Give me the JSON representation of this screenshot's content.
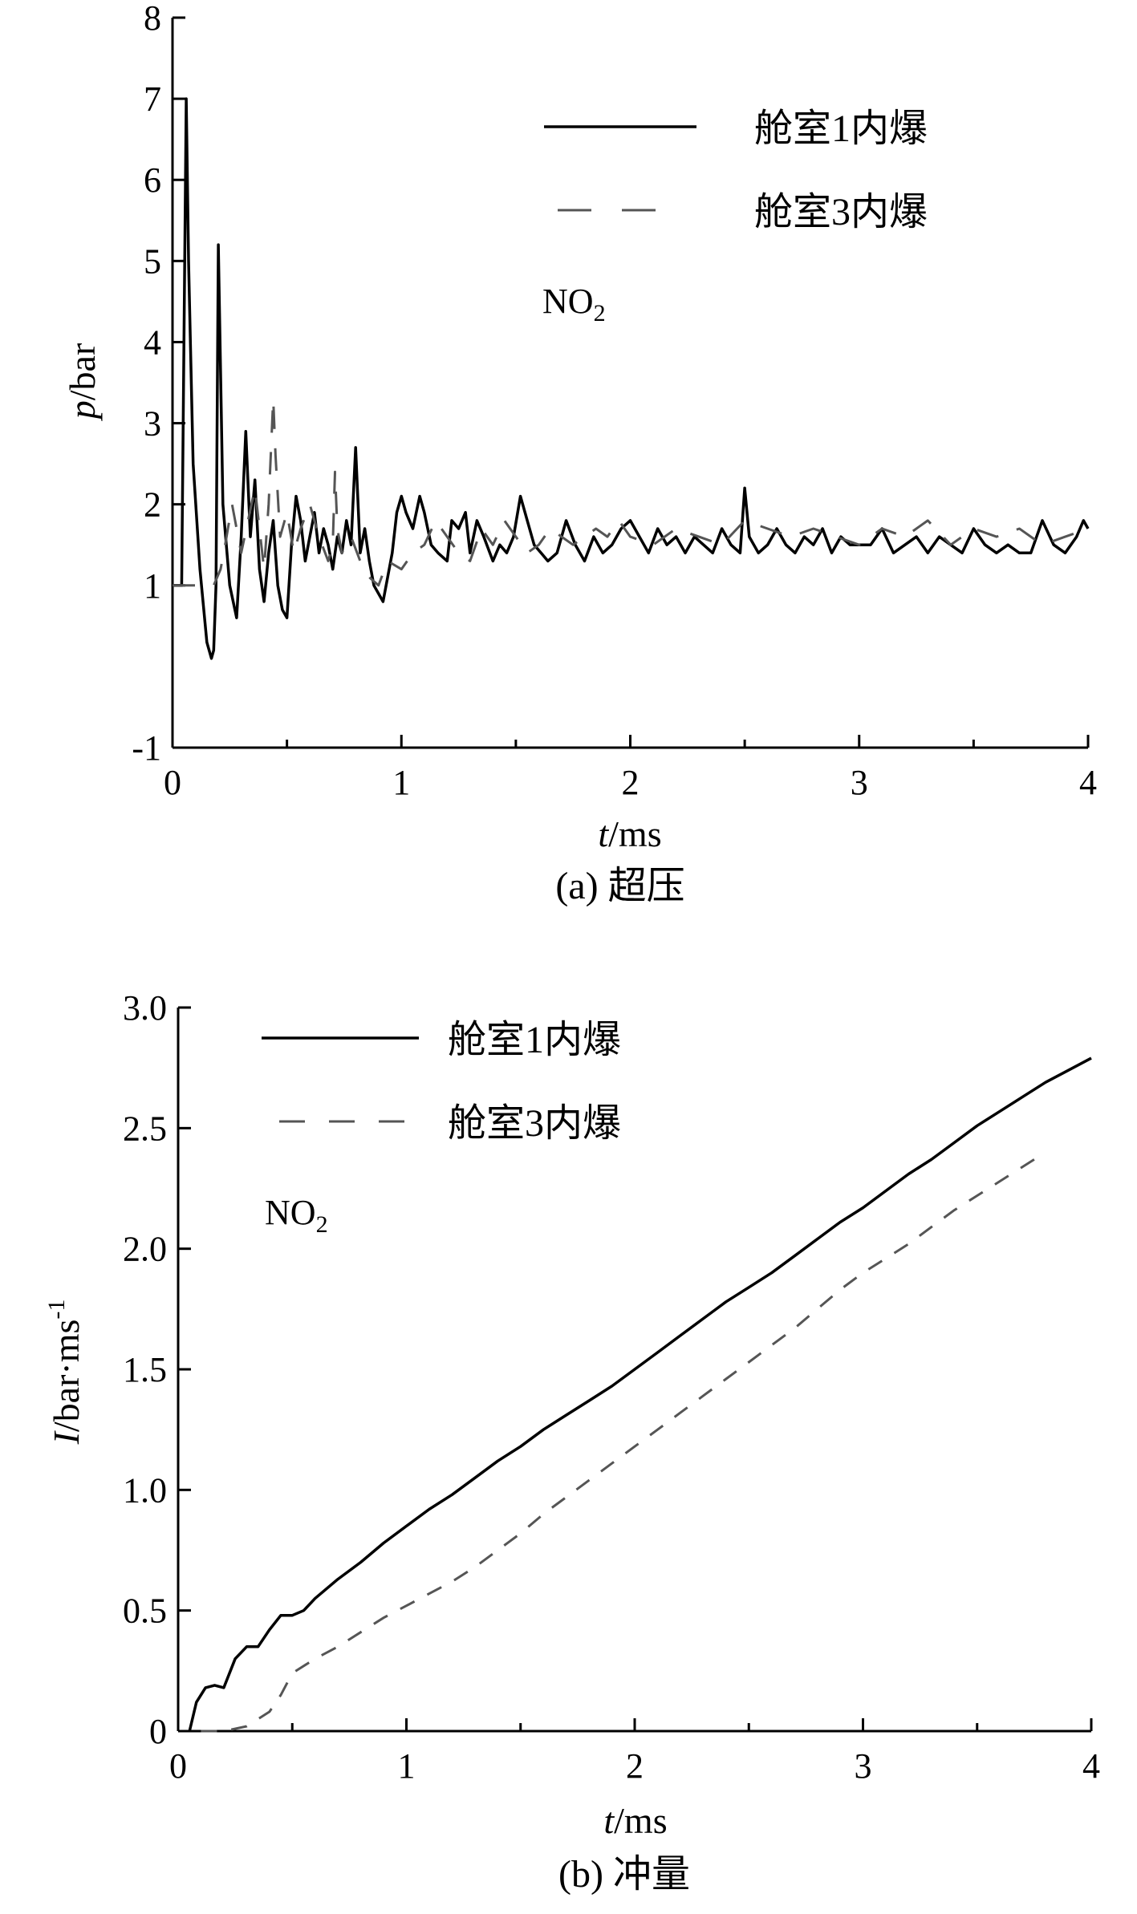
{
  "chart_data": [
    {
      "type": "line",
      "id": "a",
      "caption": "(a) 超压",
      "xlabel": {
        "symbol": "t",
        "unit": "/ms"
      },
      "ylabel": {
        "symbol": "p",
        "unit": "/bar"
      },
      "xlim": [
        0,
        4
      ],
      "ylim": [
        -1,
        8
      ],
      "x_ticks": [
        "0",
        "1",
        "2",
        "3",
        "4"
      ],
      "y_ticks": [
        {
          "value": -1,
          "label": "-1"
        },
        {
          "value": 1,
          "label": "1"
        },
        {
          "value": 2,
          "label": "2"
        },
        {
          "value": 3,
          "label": "3"
        },
        {
          "value": 4,
          "label": "4"
        },
        {
          "value": 5,
          "label": "5"
        },
        {
          "value": 6,
          "label": "6"
        },
        {
          "value": 7,
          "label": "7"
        },
        {
          "value": 8,
          "label": "8"
        }
      ],
      "annotation": {
        "base": "NO",
        "sub": "2"
      },
      "legend_position": "top-right",
      "series": [
        {
          "name": "舱室1内爆",
          "style": "solid",
          "x": [
            0.0,
            0.04,
            0.06,
            0.07,
            0.09,
            0.12,
            0.15,
            0.17,
            0.18,
            0.19,
            0.2,
            0.22,
            0.25,
            0.28,
            0.3,
            0.32,
            0.34,
            0.36,
            0.38,
            0.4,
            0.42,
            0.44,
            0.46,
            0.48,
            0.5,
            0.52,
            0.54,
            0.56,
            0.58,
            0.6,
            0.62,
            0.64,
            0.66,
            0.68,
            0.7,
            0.72,
            0.74,
            0.76,
            0.78,
            0.8,
            0.82,
            0.84,
            0.86,
            0.88,
            0.9,
            0.92,
            0.94,
            0.96,
            0.98,
            1.0,
            1.02,
            1.05,
            1.08,
            1.1,
            1.13,
            1.16,
            1.2,
            1.22,
            1.25,
            1.28,
            1.3,
            1.33,
            1.36,
            1.4,
            1.43,
            1.46,
            1.49,
            1.52,
            1.55,
            1.58,
            1.61,
            1.64,
            1.68,
            1.72,
            1.76,
            1.8,
            1.84,
            1.88,
            1.92,
            1.96,
            2.0,
            2.04,
            2.08,
            2.12,
            2.16,
            2.2,
            2.24,
            2.28,
            2.32,
            2.36,
            2.4,
            2.44,
            2.48,
            2.5,
            2.52,
            2.56,
            2.6,
            2.64,
            2.68,
            2.72,
            2.76,
            2.8,
            2.84,
            2.88,
            2.92,
            2.96,
            3.0,
            3.05,
            3.1,
            3.15,
            3.2,
            3.25,
            3.3,
            3.35,
            3.4,
            3.45,
            3.5,
            3.55,
            3.6,
            3.65,
            3.7,
            3.75,
            3.8,
            3.85,
            3.9,
            3.95,
            3.98,
            4.0
          ],
          "y": [
            1.0,
            1.0,
            7.0,
            5.0,
            2.5,
            1.2,
            0.3,
            0.1,
            0.2,
            1.0,
            5.2,
            2.0,
            1.0,
            0.6,
            1.6,
            2.9,
            1.6,
            2.3,
            1.2,
            0.8,
            1.4,
            1.8,
            1.0,
            0.7,
            0.6,
            1.5,
            2.1,
            1.8,
            1.3,
            1.6,
            1.9,
            1.4,
            1.7,
            1.5,
            1.2,
            1.6,
            1.4,
            1.8,
            1.5,
            2.7,
            1.4,
            1.7,
            1.3,
            1.0,
            0.9,
            0.8,
            1.1,
            1.4,
            1.9,
            2.1,
            1.9,
            1.7,
            2.1,
            1.9,
            1.5,
            1.4,
            1.3,
            1.8,
            1.7,
            1.9,
            1.4,
            1.8,
            1.6,
            1.3,
            1.5,
            1.4,
            1.6,
            2.1,
            1.8,
            1.5,
            1.4,
            1.3,
            1.4,
            1.8,
            1.5,
            1.3,
            1.6,
            1.4,
            1.5,
            1.7,
            1.8,
            1.6,
            1.4,
            1.7,
            1.5,
            1.6,
            1.4,
            1.6,
            1.5,
            1.4,
            1.7,
            1.5,
            1.4,
            2.2,
            1.6,
            1.4,
            1.5,
            1.7,
            1.5,
            1.4,
            1.6,
            1.5,
            1.7,
            1.4,
            1.6,
            1.5,
            1.5,
            1.5,
            1.7,
            1.4,
            1.5,
            1.6,
            1.4,
            1.6,
            1.5,
            1.4,
            1.7,
            1.5,
            1.4,
            1.5,
            1.4,
            1.4,
            1.8,
            1.5,
            1.4,
            1.6,
            1.8,
            1.7
          ]
        },
        {
          "name": "舱室3内爆",
          "style": "dashed",
          "x": [
            0.0,
            0.1,
            0.18,
            0.21,
            0.23,
            0.26,
            0.3,
            0.33,
            0.36,
            0.4,
            0.42,
            0.44,
            0.45,
            0.47,
            0.5,
            0.53,
            0.56,
            0.6,
            0.64,
            0.68,
            0.7,
            0.71,
            0.72,
            0.74,
            0.78,
            0.82,
            0.86,
            0.9,
            0.94,
            1.0,
            1.05,
            1.1,
            1.15,
            1.2,
            1.25,
            1.3,
            1.35,
            1.4,
            1.45,
            1.5,
            1.55,
            1.6,
            1.65,
            1.7,
            1.75,
            1.8,
            1.85,
            1.9,
            1.95,
            2.0,
            2.1,
            2.2,
            2.3,
            2.4,
            2.5,
            2.6,
            2.7,
            2.8,
            2.9,
            3.0,
            3.1,
            3.2,
            3.3,
            3.4,
            3.5,
            3.6,
            3.7,
            3.8,
            3.9,
            4.0
          ],
          "y": [
            1.0,
            1.0,
            1.0,
            1.2,
            1.5,
            2.0,
            1.4,
            1.8,
            2.2,
            1.2,
            2.0,
            3.3,
            2.6,
            1.6,
            1.9,
            1.4,
            1.7,
            2.0,
            1.6,
            1.3,
            1.5,
            2.4,
            1.7,
            1.4,
            1.6,
            1.3,
            1.1,
            1.0,
            1.3,
            1.2,
            1.4,
            1.5,
            1.8,
            1.6,
            1.4,
            1.3,
            1.7,
            1.5,
            1.8,
            1.6,
            1.4,
            1.5,
            1.7,
            1.6,
            1.5,
            1.6,
            1.7,
            1.6,
            1.8,
            1.6,
            1.5,
            1.7,
            1.6,
            1.5,
            1.8,
            1.7,
            1.6,
            1.7,
            1.6,
            1.5,
            1.7,
            1.6,
            1.8,
            1.5,
            1.7,
            1.6,
            1.7,
            1.5,
            1.6,
            1.7
          ]
        }
      ]
    },
    {
      "type": "line",
      "id": "b",
      "caption": "(b) 冲量",
      "xlabel": {
        "symbol": "t",
        "unit": "/ms"
      },
      "ylabel": {
        "symbol": "I",
        "unit": "/bar·ms",
        "sup": "-1"
      },
      "xlim": [
        0,
        4
      ],
      "ylim": [
        0,
        3.0
      ],
      "x_ticks": [
        "0",
        "1",
        "2",
        "3",
        "4"
      ],
      "y_ticks": [
        {
          "value": 0,
          "label": "0"
        },
        {
          "value": 0.5,
          "label": "0.5"
        },
        {
          "value": 1.0,
          "label": "1.0"
        },
        {
          "value": 1.5,
          "label": "1.5"
        },
        {
          "value": 2.0,
          "label": "2.0"
        },
        {
          "value": 2.5,
          "label": "2.5"
        },
        {
          "value": 3.0,
          "label": "3.0"
        }
      ],
      "annotation": {
        "base": "NO",
        "sub": "2"
      },
      "legend_position": "top-left",
      "series": [
        {
          "name": "舱室1内爆",
          "style": "solid",
          "x": [
            0.05,
            0.08,
            0.12,
            0.16,
            0.2,
            0.25,
            0.3,
            0.35,
            0.4,
            0.45,
            0.5,
            0.55,
            0.6,
            0.7,
            0.8,
            0.9,
            1.0,
            1.1,
            1.2,
            1.3,
            1.4,
            1.5,
            1.6,
            1.7,
            1.8,
            1.9,
            2.0,
            2.1,
            2.2,
            2.3,
            2.4,
            2.5,
            2.6,
            2.7,
            2.8,
            2.9,
            3.0,
            3.1,
            3.2,
            3.3,
            3.4,
            3.5,
            3.6,
            3.7,
            3.8,
            3.9,
            4.0
          ],
          "y": [
            0.0,
            0.12,
            0.18,
            0.19,
            0.18,
            0.3,
            0.35,
            0.35,
            0.42,
            0.48,
            0.48,
            0.5,
            0.55,
            0.63,
            0.7,
            0.78,
            0.85,
            0.92,
            0.98,
            1.05,
            1.12,
            1.18,
            1.25,
            1.31,
            1.37,
            1.43,
            1.5,
            1.57,
            1.64,
            1.71,
            1.78,
            1.84,
            1.9,
            1.97,
            2.04,
            2.11,
            2.17,
            2.24,
            2.31,
            2.37,
            2.44,
            2.51,
            2.57,
            2.63,
            2.69,
            2.74,
            2.79
          ]
        },
        {
          "name": "舱室3内爆",
          "style": "dashed",
          "x": [
            0.1,
            0.2,
            0.3,
            0.4,
            0.45,
            0.5,
            0.6,
            0.7,
            0.8,
            0.9,
            1.0,
            1.1,
            1.2,
            1.3,
            1.4,
            1.5,
            1.6,
            1.7,
            1.8,
            1.9,
            2.0,
            2.1,
            2.2,
            2.3,
            2.4,
            2.5,
            2.6,
            2.7,
            2.8,
            2.9,
            3.0,
            3.1,
            3.2,
            3.3,
            3.4,
            3.5,
            3.6,
            3.7,
            3.8
          ],
          "y": [
            0.0,
            0.0,
            0.02,
            0.08,
            0.15,
            0.24,
            0.3,
            0.35,
            0.41,
            0.47,
            0.52,
            0.57,
            0.62,
            0.68,
            0.75,
            0.82,
            0.9,
            0.97,
            1.04,
            1.11,
            1.18,
            1.25,
            1.32,
            1.39,
            1.46,
            1.53,
            1.6,
            1.67,
            1.75,
            1.83,
            1.9,
            1.96,
            2.02,
            2.09,
            2.16,
            2.22,
            2.28,
            2.34,
            2.4
          ]
        }
      ]
    }
  ]
}
